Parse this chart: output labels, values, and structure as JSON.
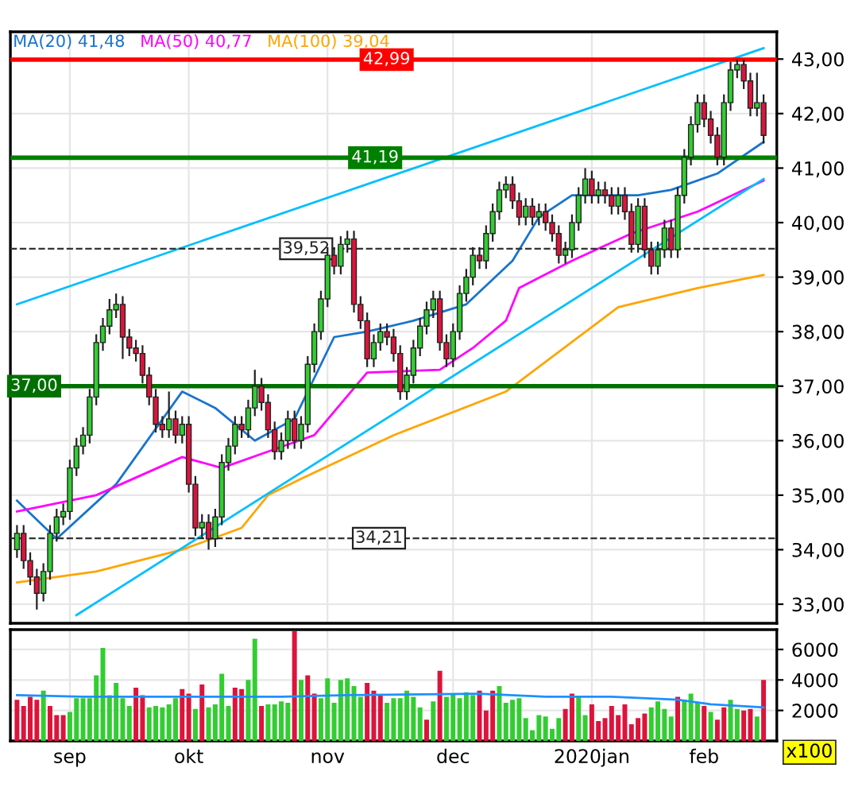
{
  "chart_data": [
    {
      "type": "candlestick",
      "ylim": [
        32.65,
        43.5
      ],
      "yticks": [
        {
          "value": 33,
          "label": "33,00"
        },
        {
          "value": 34,
          "label": "34,00"
        },
        {
          "value": 35,
          "label": "35,00"
        },
        {
          "value": 36,
          "label": "36,00"
        },
        {
          "value": 37,
          "label": "37,00"
        },
        {
          "value": 38,
          "label": "38,00"
        },
        {
          "value": 39,
          "label": "39,00"
        },
        {
          "value": 40,
          "label": "40,00"
        },
        {
          "value": 41,
          "label": "41,00"
        },
        {
          "value": 42,
          "label": "42,00"
        },
        {
          "value": 43,
          "label": "43,00"
        }
      ],
      "tick_labels": "y",
      "grid": true,
      "legend": "top left",
      "categories": [
        null,
        null,
        null,
        null,
        null,
        null,
        null,
        null,
        null,
        null,
        null,
        null,
        null,
        null,
        null,
        null,
        null,
        null,
        null,
        null,
        null,
        null,
        null,
        null,
        null,
        null,
        null,
        null,
        null,
        null,
        null,
        null,
        null,
        null,
        null,
        null,
        null,
        null,
        null,
        null,
        null,
        null,
        null,
        null,
        null,
        null,
        null,
        null,
        null,
        null,
        null,
        null,
        null,
        null,
        null,
        null,
        null,
        null,
        null,
        null,
        null,
        null,
        null,
        null,
        null,
        null,
        null,
        null,
        null,
        null,
        null,
        null,
        null,
        null,
        null,
        null,
        null,
        null,
        null,
        null,
        null,
        null,
        null,
        null,
        null,
        null,
        null,
        null,
        null,
        null,
        null,
        null,
        null,
        null,
        null,
        null,
        null,
        null,
        null,
        null,
        null,
        null,
        null,
        null,
        null,
        null,
        null,
        null,
        null,
        null,
        null,
        null,
        null,
        null
      ],
      "ohlc": [
        [
          34.0,
          34.45,
          33.85,
          34.3
        ],
        [
          34.3,
          34.45,
          33.65,
          33.8
        ],
        [
          33.8,
          33.95,
          33.35,
          33.5
        ],
        [
          33.5,
          33.65,
          32.9,
          33.2
        ],
        [
          33.2,
          33.75,
          33.05,
          33.6
        ],
        [
          33.6,
          34.45,
          33.45,
          34.3
        ],
        [
          34.3,
          34.75,
          34.15,
          34.6
        ],
        [
          34.6,
          34.85,
          34.45,
          34.7
        ],
        [
          34.7,
          35.65,
          34.55,
          35.5
        ],
        [
          35.5,
          36.05,
          35.35,
          35.9
        ],
        [
          35.9,
          36.25,
          35.75,
          36.1
        ],
        [
          36.1,
          36.95,
          35.95,
          36.8
        ],
        [
          36.8,
          37.95,
          36.65,
          37.8
        ],
        [
          37.8,
          38.25,
          37.65,
          38.1
        ],
        [
          38.1,
          38.6,
          37.95,
          38.4
        ],
        [
          38.4,
          38.7,
          38.25,
          38.5
        ],
        [
          38.5,
          38.65,
          37.5,
          37.9
        ],
        [
          37.9,
          38.05,
          37.55,
          37.7
        ],
        [
          37.7,
          37.85,
          37.45,
          37.6
        ],
        [
          37.6,
          37.75,
          37.05,
          37.2
        ],
        [
          37.2,
          37.35,
          36.65,
          36.8
        ],
        [
          36.8,
          36.95,
          36.15,
          36.3
        ],
        [
          36.3,
          36.45,
          36.05,
          36.2
        ],
        [
          36.2,
          36.9,
          36.05,
          36.4
        ],
        [
          36.4,
          36.55,
          35.95,
          36.1
        ],
        [
          36.1,
          36.45,
          35.95,
          36.3
        ],
        [
          36.3,
          36.45,
          35.05,
          35.2
        ],
        [
          35.2,
          35.35,
          34.25,
          34.4
        ],
        [
          34.4,
          34.65,
          34.2,
          34.5
        ],
        [
          34.5,
          34.65,
          34.0,
          34.2
        ],
        [
          34.2,
          34.75,
          34.05,
          34.6
        ],
        [
          34.6,
          35.75,
          34.45,
          35.6
        ],
        [
          35.6,
          36.05,
          35.45,
          35.9
        ],
        [
          35.9,
          36.45,
          35.75,
          36.3
        ],
        [
          36.3,
          36.45,
          36.05,
          36.2
        ],
        [
          36.2,
          36.75,
          36.05,
          36.6
        ],
        [
          36.6,
          37.3,
          36.45,
          37.0
        ],
        [
          37.0,
          37.15,
          36.55,
          36.7
        ],
        [
          36.7,
          36.85,
          36.05,
          36.2
        ],
        [
          36.2,
          36.35,
          35.65,
          35.8
        ],
        [
          35.8,
          36.15,
          35.65,
          36.0
        ],
        [
          36.0,
          36.55,
          35.85,
          36.4
        ],
        [
          36.4,
          36.55,
          35.85,
          36.0
        ],
        [
          36.0,
          36.45,
          35.85,
          36.3
        ],
        [
          36.3,
          37.55,
          36.15,
          37.4
        ],
        [
          37.4,
          38.15,
          37.25,
          38.0
        ],
        [
          38.0,
          38.75,
          37.85,
          38.6
        ],
        [
          38.6,
          39.55,
          38.45,
          39.4
        ],
        [
          39.4,
          39.55,
          39.05,
          39.2
        ],
        [
          39.2,
          39.75,
          39.05,
          39.6
        ],
        [
          39.6,
          39.85,
          39.45,
          39.7
        ],
        [
          39.7,
          39.85,
          38.35,
          38.5
        ],
        [
          38.5,
          38.65,
          38.05,
          38.2
        ],
        [
          38.2,
          38.35,
          37.35,
          37.5
        ],
        [
          37.5,
          37.95,
          37.35,
          37.8
        ],
        [
          37.8,
          38.15,
          37.65,
          38.0
        ],
        [
          38.0,
          38.15,
          37.75,
          37.9
        ],
        [
          37.9,
          38.05,
          37.45,
          37.6
        ],
        [
          37.6,
          37.75,
          36.75,
          36.9
        ],
        [
          36.9,
          37.35,
          36.75,
          37.2
        ],
        [
          37.2,
          37.85,
          37.05,
          37.7
        ],
        [
          37.7,
          38.25,
          37.55,
          38.1
        ],
        [
          38.1,
          38.55,
          37.95,
          38.4
        ],
        [
          38.4,
          38.75,
          38.25,
          38.6
        ],
        [
          38.6,
          38.75,
          37.65,
          37.8
        ],
        [
          37.8,
          37.95,
          37.35,
          37.5
        ],
        [
          37.5,
          38.15,
          37.35,
          38.0
        ],
        [
          38.0,
          38.85,
          37.85,
          38.7
        ],
        [
          38.7,
          39.15,
          38.55,
          39.0
        ],
        [
          39.0,
          39.55,
          38.85,
          39.4
        ],
        [
          39.4,
          39.55,
          39.15,
          39.3
        ],
        [
          39.3,
          39.95,
          39.15,
          39.8
        ],
        [
          39.8,
          40.35,
          39.65,
          40.2
        ],
        [
          40.2,
          40.75,
          40.05,
          40.6
        ],
        [
          40.6,
          40.85,
          40.45,
          40.7
        ],
        [
          40.7,
          40.85,
          40.25,
          40.4
        ],
        [
          40.4,
          40.55,
          39.95,
          40.1
        ],
        [
          40.1,
          40.45,
          39.95,
          40.3
        ],
        [
          40.3,
          40.45,
          39.95,
          40.1
        ],
        [
          40.1,
          40.35,
          39.95,
          40.2
        ],
        [
          40.2,
          40.35,
          39.85,
          40.0
        ],
        [
          40.0,
          40.15,
          39.65,
          39.8
        ],
        [
          39.8,
          39.95,
          39.25,
          39.4
        ],
        [
          39.4,
          39.65,
          39.25,
          39.5
        ],
        [
          39.5,
          40.15,
          39.35,
          40.0
        ],
        [
          40.0,
          40.65,
          39.85,
          40.5
        ],
        [
          40.5,
          41.0,
          40.35,
          40.8
        ],
        [
          40.8,
          40.95,
          40.35,
          40.5
        ],
        [
          40.5,
          40.75,
          40.35,
          40.6
        ],
        [
          40.6,
          40.75,
          40.35,
          40.5
        ],
        [
          40.5,
          40.65,
          40.15,
          40.3
        ],
        [
          40.3,
          40.65,
          40.15,
          40.5
        ],
        [
          40.5,
          40.65,
          40.05,
          40.2
        ],
        [
          40.2,
          40.35,
          39.45,
          39.6
        ],
        [
          39.6,
          40.45,
          39.45,
          40.3
        ],
        [
          40.3,
          40.45,
          39.35,
          39.5
        ],
        [
          39.5,
          39.65,
          39.05,
          39.2
        ],
        [
          39.2,
          39.65,
          39.05,
          39.5
        ],
        [
          39.5,
          40.05,
          39.35,
          39.9
        ],
        [
          39.9,
          40.05,
          39.35,
          39.5
        ],
        [
          39.5,
          40.65,
          39.35,
          40.5
        ],
        [
          40.5,
          41.35,
          40.35,
          41.2
        ],
        [
          41.2,
          41.95,
          41.05,
          41.8
        ],
        [
          41.8,
          42.35,
          41.65,
          42.2
        ],
        [
          42.2,
          42.35,
          41.75,
          41.9
        ],
        [
          41.9,
          42.05,
          41.45,
          41.6
        ],
        [
          41.6,
          41.75,
          41.05,
          41.2
        ],
        [
          41.2,
          42.35,
          41.05,
          42.2
        ],
        [
          42.2,
          42.95,
          42.05,
          42.8
        ],
        [
          42.8,
          42.99,
          42.65,
          42.9
        ],
        [
          42.9,
          42.99,
          42.45,
          42.6
        ],
        [
          42.6,
          42.75,
          41.95,
          42.1
        ],
        [
          42.1,
          42.75,
          41.95,
          42.2
        ],
        [
          42.2,
          42.35,
          41.45,
          41.6
        ]
      ],
      "series": [
        {
          "type": "line",
          "name": "MA(20) 41,48",
          "color": "#1874cd",
          "values": [
            34.9,
            null,
            null,
            null,
            null,
            null,
            34.2,
            null,
            null,
            null,
            null,
            null,
            null,
            null,
            null,
            35.2,
            null,
            null,
            null,
            null,
            null,
            null,
            null,
            null,
            null,
            36.9,
            null,
            null,
            null,
            null,
            36.6,
            null,
            null,
            null,
            null,
            null,
            36.0,
            null,
            null,
            null,
            null,
            null,
            36.4,
            null,
            null,
            null,
            null,
            null,
            37.9,
            null,
            null,
            null,
            null,
            38.0,
            null,
            null,
            null,
            null,
            null,
            null,
            38.2,
            null,
            null,
            null,
            null,
            null,
            null,
            null,
            38.5,
            null,
            null,
            null,
            null,
            null,
            null,
            39.3,
            null,
            null,
            null,
            40.1,
            null,
            null,
            null,
            null,
            40.5,
            null,
            null,
            null,
            null,
            null,
            null,
            null,
            null,
            null,
            40.5,
            null,
            null,
            null,
            null,
            40.6,
            null,
            null,
            null,
            null,
            null,
            null,
            40.9,
            null,
            null,
            null,
            null,
            null,
            null,
            41.48
          ]
        },
        {
          "type": "line",
          "name": "MA(50) 40,77",
          "color": "#ff00ff",
          "values": [
            34.7,
            null,
            null,
            null,
            null,
            null,
            null,
            null,
            null,
            null,
            null,
            null,
            35.0,
            null,
            null,
            null,
            null,
            null,
            null,
            null,
            null,
            null,
            null,
            null,
            null,
            35.7,
            null,
            null,
            null,
            null,
            null,
            35.5,
            null,
            null,
            null,
            null,
            null,
            null,
            35.8,
            null,
            null,
            null,
            null,
            null,
            null,
            36.1,
            null,
            null,
            null,
            null,
            null,
            null,
            null,
            37.25,
            null,
            null,
            null,
            null,
            null,
            null,
            null,
            null,
            null,
            null,
            37.3,
            null,
            null,
            null,
            null,
            37.7,
            null,
            null,
            null,
            null,
            38.2,
            null,
            38.8,
            null,
            null,
            null,
            null,
            null,
            null,
            null,
            39.3,
            null,
            null,
            null,
            null,
            null,
            null,
            null,
            null,
            39.8,
            null,
            null,
            null,
            null,
            null,
            null,
            null,
            null,
            null,
            40.2,
            null,
            null,
            null,
            null,
            null,
            null,
            null,
            null,
            null,
            40.77
          ]
        },
        {
          "type": "line",
          "name": "MA(100) 39,04",
          "color": "#ffa500",
          "values": [
            33.4,
            null,
            null,
            null,
            null,
            null,
            null,
            null,
            null,
            null,
            null,
            null,
            33.6,
            null,
            null,
            null,
            null,
            null,
            null,
            null,
            null,
            null,
            null,
            null,
            null,
            34.0,
            null,
            null,
            null,
            null,
            null,
            null,
            null,
            null,
            34.4,
            null,
            null,
            null,
            35.0,
            null,
            null,
            null,
            null,
            35.3,
            null,
            null,
            null,
            null,
            null,
            null,
            null,
            null,
            null,
            null,
            null,
            null,
            null,
            36.1,
            null,
            null,
            null,
            null,
            null,
            null,
            null,
            null,
            null,
            null,
            null,
            null,
            null,
            null,
            null,
            null,
            36.9,
            null,
            null,
            null,
            null,
            null,
            null,
            null,
            null,
            null,
            null,
            null,
            null,
            null,
            null,
            null,
            null,
            38.45,
            null,
            null,
            null,
            null,
            null,
            null,
            null,
            null,
            null,
            null,
            null,
            38.8,
            null,
            null,
            null,
            null,
            null,
            null,
            null,
            null,
            null,
            39.04
          ]
        },
        {
          "type": "line",
          "color": "#00bfff",
          "values": [
            38.5,
            null,
            null,
            null,
            null,
            null,
            null,
            null,
            null,
            null,
            null,
            null,
            null,
            null,
            null,
            null,
            null,
            null,
            null,
            null,
            null,
            null,
            null,
            null,
            null,
            null,
            null,
            null,
            null,
            null,
            null,
            null,
            null,
            null,
            null,
            null,
            null,
            null,
            null,
            null,
            null,
            null,
            null,
            null,
            null,
            null,
            null,
            null,
            null,
            null,
            null,
            null,
            null,
            null,
            null,
            null,
            null,
            null,
            null,
            null,
            null,
            null,
            null,
            null,
            null,
            null,
            null,
            null,
            null,
            null,
            null,
            null,
            null,
            null,
            null,
            null,
            null,
            null,
            null,
            null,
            null,
            null,
            null,
            null,
            null,
            null,
            null,
            null,
            null,
            null,
            null,
            null,
            null,
            null,
            null,
            null,
            null,
            null,
            null,
            null,
            null,
            null,
            null,
            null,
            null,
            null,
            null,
            null,
            null,
            null,
            null,
            null,
            null,
            43.2
          ]
        },
        {
          "type": "line",
          "color": "#00bfff",
          "values": [
            null,
            null,
            null,
            null,
            null,
            null,
            null,
            null,
            null,
            32.8,
            null,
            null,
            null,
            null,
            null,
            null,
            null,
            null,
            null,
            null,
            null,
            null,
            null,
            null,
            null,
            null,
            null,
            null,
            null,
            null,
            null,
            null,
            null,
            null,
            null,
            null,
            null,
            null,
            null,
            null,
            null,
            null,
            null,
            null,
            null,
            null,
            null,
            null,
            null,
            null,
            null,
            null,
            null,
            null,
            null,
            null,
            null,
            null,
            null,
            null,
            null,
            null,
            null,
            null,
            null,
            null,
            null,
            null,
            null,
            null,
            null,
            null,
            null,
            null,
            null,
            null,
            null,
            null,
            null,
            null,
            null,
            null,
            null,
            null,
            null,
            null,
            null,
            null,
            null,
            null,
            null,
            null,
            null,
            null,
            null,
            null,
            null,
            null,
            null,
            null,
            null,
            null,
            null,
            null,
            null,
            null,
            null,
            null,
            null,
            null,
            null,
            null,
            null,
            40.8
          ]
        }
      ],
      "ref_lines": [
        {
          "axis": "y",
          "value": 42.99,
          "label": "42,99",
          "color": "#ff0000",
          "line_style": "solid"
        },
        {
          "axis": "y",
          "value": 41.19,
          "label": "41,19",
          "color": "#008000",
          "line_style": "solid"
        },
        {
          "axis": "y",
          "value": 37.0,
          "label": "37,00",
          "color": "#007000",
          "line_style": "solid"
        },
        {
          "axis": "y",
          "value": 39.52,
          "label": "39,52",
          "color": "#333333",
          "line_style": "dashed"
        },
        {
          "axis": "y",
          "value": 34.21,
          "label": "34,21",
          "color": "#333333",
          "line_style": "dashed"
        }
      ]
    },
    {
      "type": "bar",
      "ylim": [
        0,
        7300
      ],
      "yticks": [
        2000,
        4000,
        6000
      ],
      "grid": true,
      "annotations": [
        "x100"
      ],
      "categories": [
        null,
        null,
        null,
        null,
        null,
        null,
        null,
        null,
        "sep",
        null,
        null,
        null,
        null,
        null,
        null,
        null,
        null,
        null,
        null,
        null,
        null,
        null,
        null,
        null,
        null,
        null,
        "okt",
        null,
        null,
        null,
        null,
        null,
        null,
        null,
        null,
        null,
        null,
        null,
        null,
        null,
        null,
        null,
        null,
        null,
        null,
        null,
        null,
        "nov",
        null,
        null,
        null,
        null,
        null,
        null,
        null,
        null,
        null,
        null,
        null,
        null,
        null,
        null,
        null,
        null,
        null,
        null,
        "dec",
        null,
        null,
        null,
        null,
        null,
        null,
        null,
        null,
        null,
        null,
        null,
        null,
        null,
        null,
        null,
        null,
        null,
        null,
        null,
        null,
        "2020jan",
        null,
        null,
        null,
        null,
        null,
        null,
        null,
        null,
        null,
        null,
        null,
        null,
        null,
        null,
        null,
        null,
        "feb",
        null,
        null,
        null,
        null,
        null,
        null,
        null,
        null,
        null
      ],
      "series": [
        {
          "type": "bar",
          "values": [
            2700,
            2300,
            2900,
            2700,
            3300,
            2300,
            1700,
            1700,
            1900,
            2800,
            2800,
            2800,
            4300,
            6100,
            3000,
            3800,
            2800,
            2300,
            3500,
            3000,
            2200,
            2300,
            2200,
            2400,
            2800,
            3400,
            3100,
            2100,
            3700,
            2200,
            2400,
            4400,
            2300,
            3500,
            3400,
            4000,
            6700,
            2300,
            2400,
            2400,
            2600,
            2500,
            7200,
            4000,
            4300,
            3100,
            2800,
            4100,
            2500,
            4000,
            4100,
            3600,
            2900,
            3800,
            3300,
            3000,
            2500,
            2800,
            2800,
            3300,
            2900,
            2200,
            1400,
            2600,
            4600,
            2900,
            3100,
            2800,
            3200,
            3000,
            3300,
            2000,
            3300,
            3600,
            2500,
            2700,
            2800,
            1500,
            700,
            1700,
            1600,
            800,
            1500,
            2100,
            3100,
            2900,
            1700,
            2400,
            1300,
            1500,
            2300,
            1700,
            2400,
            1100,
            1500,
            1800,
            2200,
            2600,
            2100,
            1600,
            2900,
            2700,
            3100,
            2500,
            2300,
            1900,
            1400,
            2200,
            2700,
            2100,
            2000,
            2100,
            1600,
            4000
          ],
          "colors": [
            "#dc143c",
            "#dc143c",
            "#dc143c",
            "#dc143c",
            "#32cd32",
            "#dc143c",
            "#dc143c",
            "#dc143c",
            "#32cd32",
            "#32cd32",
            "#32cd32",
            "#32cd32",
            "#32cd32",
            "#32cd32",
            "#32cd32",
            "#32cd32",
            "#32cd32",
            "#32cd32",
            "#dc143c",
            "#dc143c",
            "#32cd32",
            "#32cd32",
            "#32cd32",
            "#32cd32",
            "#32cd32",
            "#dc143c",
            "#dc143c",
            "#32cd32",
            "#dc143c",
            "#32cd32",
            "#32cd32",
            "#32cd32",
            "#32cd32",
            "#dc143c",
            "#dc143c",
            "#32cd32",
            "#32cd32",
            "#dc143c",
            "#32cd32",
            "#32cd32",
            "#32cd32",
            "#32cd32",
            "#dc143c",
            "#32cd32",
            "#dc143c",
            "#dc143c",
            "#32cd32",
            "#32cd32",
            "#32cd32",
            "#32cd32",
            "#32cd32",
            "#32cd32",
            "#32cd32",
            "#dc143c",
            "#dc143c",
            "#dc143c",
            "#32cd32",
            "#32cd32",
            "#32cd32",
            "#32cd32",
            "#32cd32",
            "#32cd32",
            "#dc143c",
            "#32cd32",
            "#dc143c",
            "#32cd32",
            "#32cd32",
            "#32cd32",
            "#32cd32",
            "#32cd32",
            "#dc143c",
            "#dc143c",
            "#dc143c",
            "#32cd32",
            "#32cd32",
            "#32cd32",
            "#32cd32",
            "#32cd32",
            "#32cd32",
            "#32cd32",
            "#32cd32",
            "#32cd32",
            "#32cd32",
            "#dc143c",
            "#dc143c",
            "#32cd32",
            "#32cd32",
            "#dc143c",
            "#dc143c",
            "#dc143c",
            "#dc143c",
            "#dc143c",
            "#dc143c",
            "#dc143c",
            "#dc143c",
            "#dc143c",
            "#32cd32",
            "#32cd32",
            "#32cd32",
            "#32cd32",
            "#dc143c",
            "#32cd32",
            "#32cd32",
            "#32cd32",
            "#dc143c",
            "#32cd32",
            "#dc143c",
            "#dc143c",
            "#32cd32",
            "#32cd32",
            "#dc143c",
            "#dc143c",
            "#32cd32",
            "#dc143c"
          ]
        },
        {
          "type": "line",
          "color": "#1e90ff",
          "values": [
            3000,
            null,
            null,
            null,
            null,
            null,
            null,
            null,
            null,
            null,
            2900,
            null,
            null,
            null,
            null,
            null,
            null,
            null,
            null,
            null,
            null,
            null,
            null,
            null,
            null,
            null,
            null,
            null,
            null,
            null,
            null,
            null,
            null,
            null,
            null,
            null,
            null,
            null,
            null,
            null,
            2900,
            null,
            null,
            null,
            null,
            null,
            null,
            null,
            null,
            null,
            3000,
            null,
            null,
            null,
            null,
            null,
            null,
            null,
            null,
            null,
            null,
            null,
            null,
            null,
            null,
            null,
            null,
            null,
            null,
            null,
            3100,
            null,
            null,
            null,
            null,
            null,
            null,
            null,
            null,
            null,
            2900,
            null,
            null,
            null,
            null,
            null,
            null,
            null,
            null,
            null,
            2900,
            null,
            null,
            null,
            null,
            null,
            null,
            null,
            null,
            null,
            2700,
            null,
            null,
            null,
            null,
            2400,
            null,
            null,
            null,
            null,
            null,
            null,
            null,
            2200
          ]
        }
      ]
    }
  ]
}
